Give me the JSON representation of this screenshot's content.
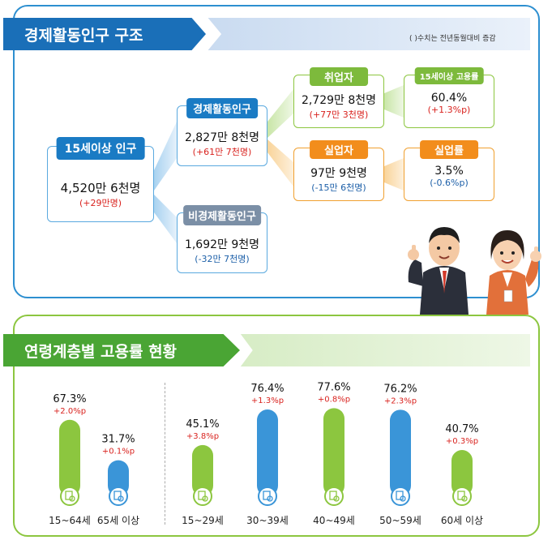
{
  "top": {
    "title": "경제활동인구 구조",
    "note": "( )수치는 전년동월대비 증감",
    "population": {
      "label": "15세이상 인구",
      "value": "4,520만 6천명",
      "change": "(+29만명)"
    },
    "active": {
      "label": "경제활동인구",
      "value": "2,827만 8천명",
      "change": "(+61만 7천명)"
    },
    "inactive": {
      "label": "비경제활동인구",
      "value": "1,692만 9천명",
      "change": "(-32만 7천명)"
    },
    "employed": {
      "label": "취업자",
      "value": "2,729만 8천명",
      "change": "(+77만 3천명)"
    },
    "employment_rate": {
      "label": "15세이상 고용률",
      "value": "60.4%",
      "change": "(+1.3%p)"
    },
    "unemployed": {
      "label": "실업자",
      "value": "97만 9천명",
      "change": "(-15만 6천명)"
    },
    "unemployment_rate": {
      "label": "실업률",
      "value": "3.5%",
      "change": "(-0.6%p)"
    }
  },
  "chart_data": {
    "type": "bar",
    "title": "연령계층별 고용률 현황",
    "categories": [
      "15~64세",
      "65세 이상",
      "15~29세",
      "30~39세",
      "40~49세",
      "50~59세",
      "60세 이상"
    ],
    "values": [
      67.3,
      31.7,
      45.1,
      76.4,
      77.6,
      76.2,
      40.7
    ],
    "value_labels": [
      "67.3%",
      "31.7%",
      "45.1%",
      "76.4%",
      "77.6%",
      "76.2%",
      "40.7%"
    ],
    "changes": [
      "+2.0%p",
      "+0.1%p",
      "+3.8%p",
      "+1.3%p",
      "+0.8%p",
      "+2.3%p",
      "+0.3%p"
    ],
    "colors": [
      "#8cc63f",
      "#3a95d8",
      "#8cc63f",
      "#3a95d8",
      "#8cc63f",
      "#3a95d8",
      "#8cc63f"
    ],
    "icon": "document-magnifier-icon",
    "grid": false
  }
}
